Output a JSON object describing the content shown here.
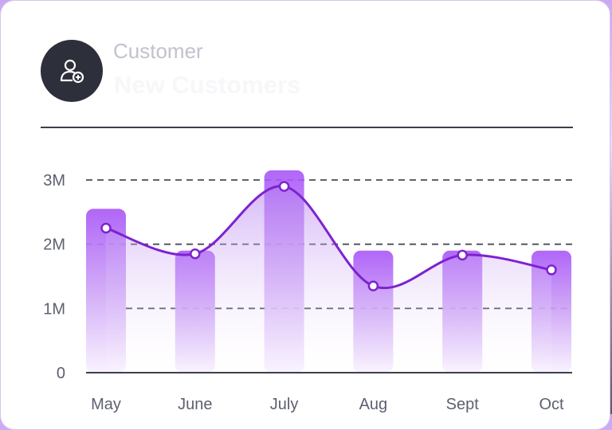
{
  "header": {
    "category": "Customer",
    "title": "New Customers",
    "icon": "user-add-icon"
  },
  "chart_data": {
    "type": "bar",
    "categories": [
      "May",
      "June",
      "July",
      "Aug",
      "Sept",
      "Oct"
    ],
    "values": [
      2.55,
      1.9,
      3.15,
      1.9,
      1.9,
      1.9
    ],
    "line_values": [
      2.25,
      1.85,
      2.9,
      1.35,
      1.83,
      1.6
    ],
    "yticks": [
      "0",
      "1M",
      "2M",
      "3M"
    ],
    "ylim": [
      0,
      3.3
    ],
    "grid": "dashed",
    "colors": {
      "bar_top": "#a855f7",
      "bar_bottom": "#f6eefd",
      "line": "#7e22ce",
      "axis": "#3d3f4b"
    }
  }
}
